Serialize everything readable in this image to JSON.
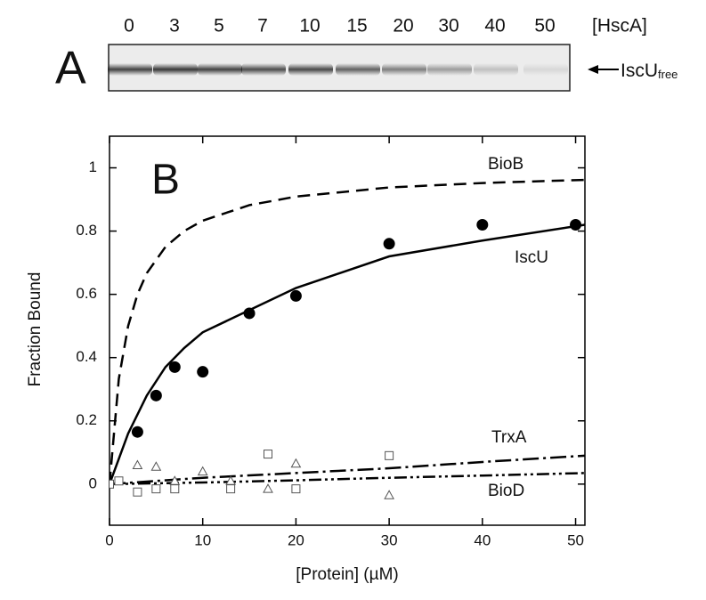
{
  "chart_data": {
    "type": "scatter",
    "panel_a_label": "A",
    "panel_b_label": "B",
    "lanes_title": "[HscA]",
    "lanes": [
      "0",
      "3",
      "5",
      "7",
      "10",
      "15",
      "20",
      "30",
      "40",
      "50"
    ],
    "gel_label": "IscU",
    "gel_label_sub": "free",
    "x_label": "[Protein] (µM)",
    "y_label": "Fraction Bound",
    "xlim": [
      0,
      51
    ],
    "ylim": [
      -0.13,
      1.1
    ],
    "xticks": [
      0,
      10,
      20,
      30,
      40,
      50
    ],
    "yticks": [
      0,
      0.2,
      0.4,
      0.6,
      0.8,
      1
    ],
    "series": [
      {
        "name": "BioB",
        "color": "#000000",
        "style": "dashed",
        "curve": {
          "x": [
            0,
            1,
            2,
            3,
            4,
            6,
            8,
            10,
            15,
            20,
            30,
            40,
            51
          ],
          "y": [
            0,
            0.333,
            0.5,
            0.6,
            0.667,
            0.75,
            0.8,
            0.833,
            0.882,
            0.909,
            0.938,
            0.952,
            0.962
          ]
        }
      },
      {
        "name": "IscU",
        "color": "#000000",
        "style": "solid",
        "curve": {
          "x": [
            0,
            2,
            4,
            6,
            8,
            10,
            15,
            20,
            30,
            40,
            51
          ],
          "y": [
            0,
            0.16,
            0.28,
            0.37,
            0.43,
            0.48,
            0.55,
            0.62,
            0.72,
            0.77,
            0.82
          ]
        },
        "points": {
          "marker": "circle",
          "filled": true,
          "x": [
            3,
            5,
            7,
            10,
            15,
            20,
            30,
            40,
            50
          ],
          "y": [
            0.165,
            0.28,
            0.37,
            0.355,
            0.54,
            0.595,
            0.76,
            0.82,
            0.82
          ]
        }
      },
      {
        "name": "TrxA",
        "color": "#000000",
        "style": "dash-dot",
        "curve": {
          "x": [
            0,
            10,
            20,
            30,
            40,
            51
          ],
          "y": [
            0,
            0.02,
            0.035,
            0.05,
            0.07,
            0.09
          ]
        },
        "points": {
          "marker": "square",
          "filled": false,
          "x": [
            0,
            1,
            3,
            5,
            7,
            13,
            17,
            20,
            30
          ],
          "y": [
            0,
            0.01,
            -0.025,
            -0.015,
            -0.015,
            -0.015,
            0.095,
            -0.015,
            0.09
          ]
        }
      },
      {
        "name": "BioD",
        "color": "#000000",
        "style": "dash-dot-dot",
        "curve": {
          "x": [
            0,
            10,
            20,
            30,
            40,
            51
          ],
          "y": [
            0,
            0.005,
            0.012,
            0.02,
            0.027,
            0.035
          ]
        },
        "points": {
          "marker": "triangle",
          "filled": false,
          "x": [
            3,
            5,
            7,
            10,
            13,
            17,
            20,
            30
          ],
          "y": [
            0.06,
            0.055,
            0.01,
            0.04,
            0.01,
            -0.015,
            0.065,
            -0.035
          ]
        }
      }
    ]
  }
}
